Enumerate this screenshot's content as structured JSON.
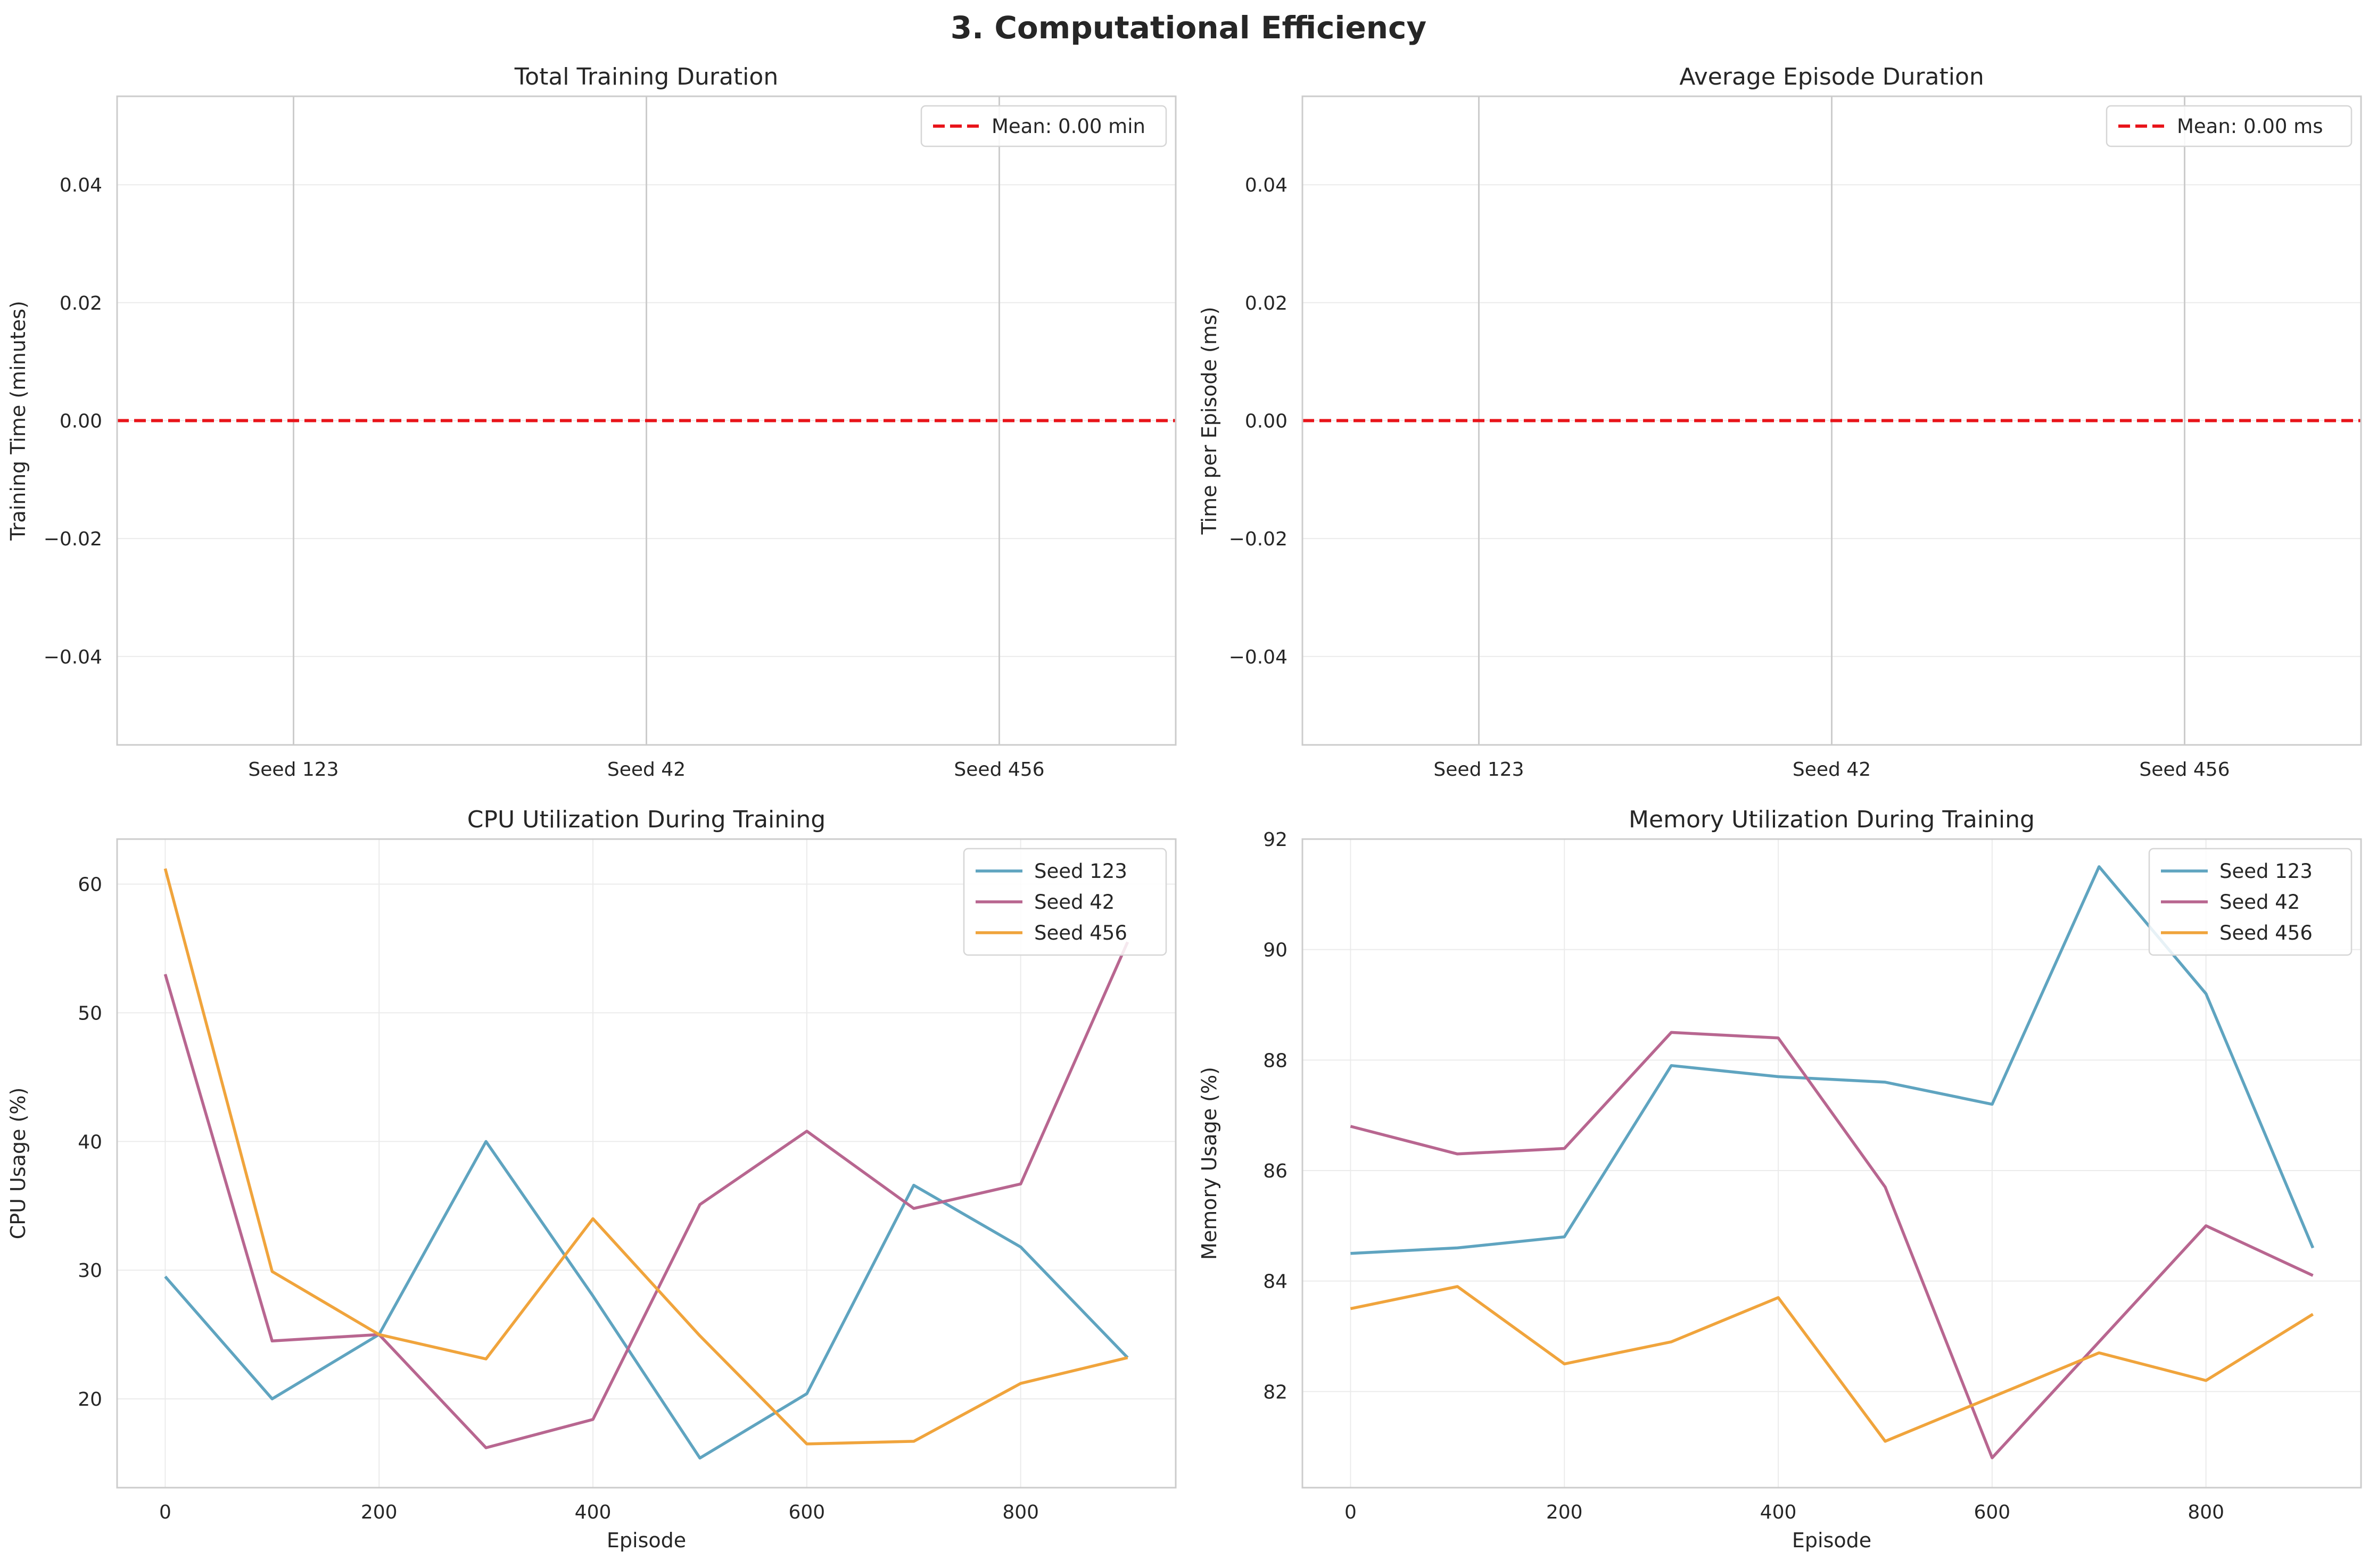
{
  "figure": {
    "suptitle": "3. Computational Efficiency"
  },
  "chart_data": [
    {
      "type": "bar",
      "title": "Total Training Duration",
      "xlabel": "",
      "ylabel": "Training Time (minutes)",
      "categories": [
        "Seed 123",
        "Seed 42",
        "Seed 456"
      ],
      "values": [
        0,
        0,
        0
      ],
      "ylim": [
        -0.055,
        0.055
      ],
      "yticks": [
        -0.04,
        -0.02,
        0.0,
        0.02,
        0.04
      ],
      "ytick_labels": [
        "−0.04",
        "−0.02",
        "0.00",
        "0.02",
        "0.04"
      ],
      "mean_line": {
        "value": 0.0,
        "label": "Mean: 0.00 min",
        "color": "#e8141a",
        "style": "dashed"
      },
      "grid": true,
      "legend_position": "top-right"
    },
    {
      "type": "bar",
      "title": "Average Episode Duration",
      "xlabel": "",
      "ylabel": "Time per Episode (ms)",
      "categories": [
        "Seed 123",
        "Seed 42",
        "Seed 456"
      ],
      "values": [
        0,
        0,
        0
      ],
      "ylim": [
        -0.055,
        0.055
      ],
      "yticks": [
        -0.04,
        -0.02,
        0.0,
        0.02,
        0.04
      ],
      "ytick_labels": [
        "−0.04",
        "−0.02",
        "0.00",
        "0.02",
        "0.04"
      ],
      "mean_line": {
        "value": 0.0,
        "label": "Mean: 0.00 ms",
        "color": "#e8141a",
        "style": "dashed"
      },
      "grid": true,
      "legend_position": "top-right"
    },
    {
      "type": "line",
      "title": "CPU Utilization During Training",
      "xlabel": "Episode",
      "ylabel": "CPU Usage (%)",
      "x": [
        0,
        100,
        200,
        300,
        400,
        500,
        600,
        700,
        800,
        900
      ],
      "series": [
        {
          "name": "Seed 123",
          "color": "#5fa4c0",
          "values": [
            29.5,
            20.0,
            25.0,
            40.0,
            28.0,
            15.4,
            20.4,
            36.6,
            31.8,
            23.2
          ]
        },
        {
          "name": "Seed 42",
          "color": "#b86690",
          "values": [
            53.0,
            24.5,
            25.0,
            16.2,
            18.4,
            35.1,
            40.8,
            34.8,
            36.7,
            55.5
          ]
        },
        {
          "name": "Seed 456",
          "color": "#f0a43c",
          "values": [
            61.2,
            29.9,
            25.0,
            23.1,
            34.0,
            24.9,
            16.5,
            16.7,
            21.2,
            23.2
          ]
        }
      ],
      "xlim": [
        -45,
        945
      ],
      "ylim": [
        13.1,
        63.5
      ],
      "xticks": [
        0,
        200,
        400,
        600,
        800
      ],
      "yticks": [
        20,
        30,
        40,
        50,
        60
      ],
      "grid": true,
      "legend_position": "top-right"
    },
    {
      "type": "line",
      "title": "Memory Utilization During Training",
      "xlabel": "Episode",
      "ylabel": "Memory Usage (%)",
      "x": [
        0,
        100,
        200,
        300,
        400,
        500,
        600,
        700,
        800,
        900
      ],
      "series": [
        {
          "name": "Seed 123",
          "color": "#5fa4c0",
          "values": [
            84.5,
            84.6,
            84.8,
            87.9,
            87.7,
            87.6,
            87.2,
            91.5,
            89.2,
            84.6
          ]
        },
        {
          "name": "Seed 42",
          "color": "#b86690",
          "values": [
            86.8,
            86.3,
            86.4,
            88.5,
            88.4,
            85.7,
            80.8,
            82.9,
            85.0,
            84.1
          ]
        },
        {
          "name": "Seed 456",
          "color": "#f0a43c",
          "values": [
            83.5,
            83.9,
            82.5,
            82.9,
            83.7,
            81.1,
            81.9,
            82.7,
            82.2,
            83.4
          ]
        }
      ],
      "xlim": [
        -45,
        945
      ],
      "ylim": [
        80.26,
        92.0
      ],
      "xticks": [
        0,
        200,
        400,
        600,
        800
      ],
      "yticks": [
        82,
        84,
        86,
        88,
        90,
        92
      ],
      "grid": true,
      "legend_position": "top-right"
    }
  ]
}
